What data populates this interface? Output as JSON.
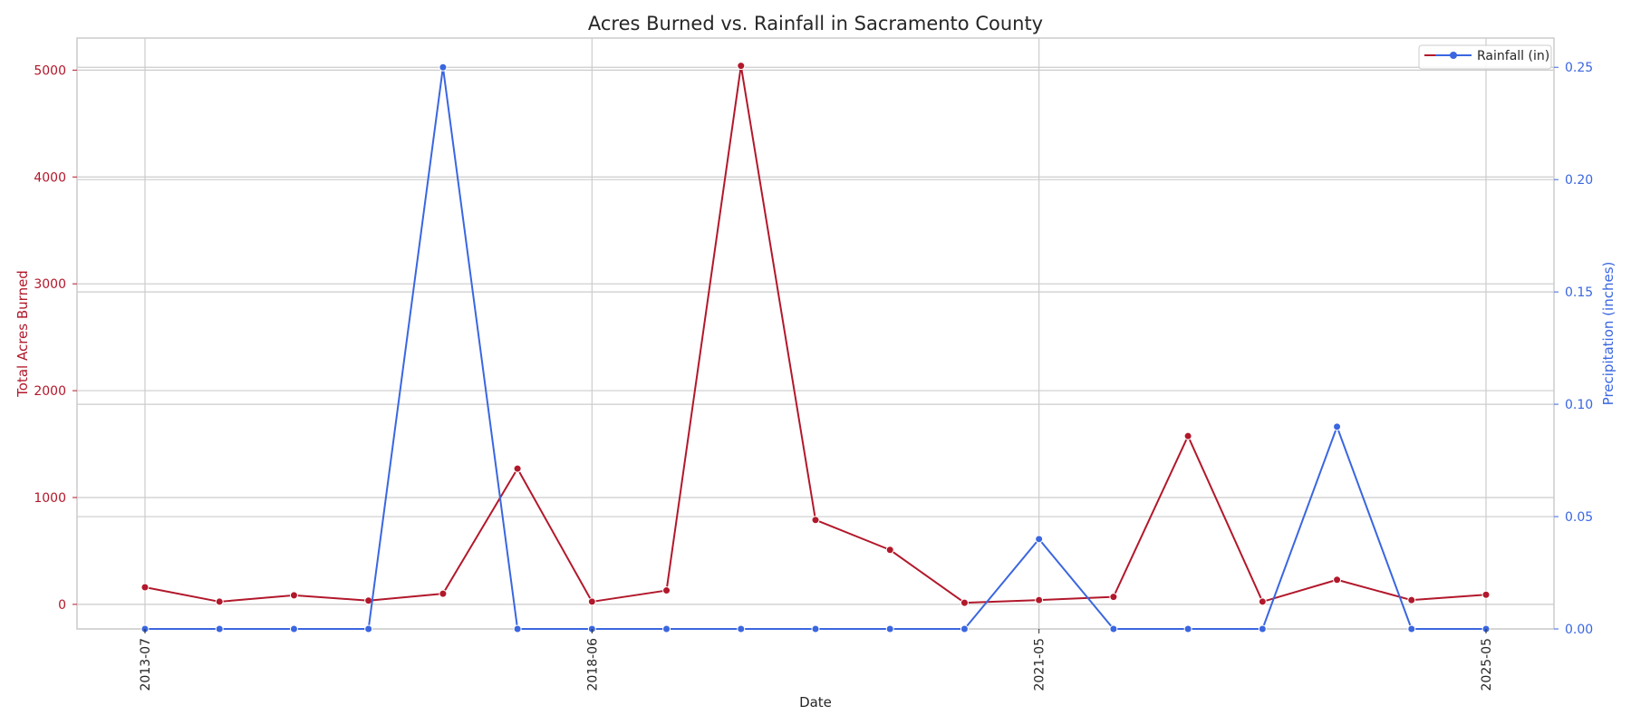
{
  "chart_data": {
    "type": "line",
    "title": "Acres Burned vs. Rainfall in Sacramento County",
    "xlabel": "Date",
    "ylabel_left": "Total Acres Burned",
    "ylabel_right": "Precipitation (inches)",
    "x_tick_labels": [
      "2013-07",
      "2018-06",
      "2021-05",
      "2025-05"
    ],
    "x": [
      0,
      1,
      2,
      3,
      4,
      5,
      6,
      7,
      8,
      9,
      10,
      11,
      12,
      13,
      14,
      15,
      16,
      17,
      18
    ],
    "x_tick_positions": [
      0,
      6,
      12,
      18
    ],
    "ylim_left": [
      -230,
      5300
    ],
    "ylim_right": [
      0,
      0.263
    ],
    "yticks_left": [
      0,
      1000,
      2000,
      3000,
      4000,
      5000
    ],
    "yticks_right": [
      0.0,
      0.05,
      0.1,
      0.15,
      0.2,
      0.25
    ],
    "grid": true,
    "legend_position": "top-right",
    "series": [
      {
        "axis": "left",
        "color": "#b2182b",
        "values": [
          160,
          25,
          85,
          35,
          100,
          1270,
          25,
          130,
          5040,
          790,
          510,
          15,
          40,
          70,
          1575,
          25,
          230,
          40,
          90
        ]
      },
      {
        "name": "Rainfall (in)",
        "axis": "right",
        "color": "#3a66e0",
        "values": [
          0,
          0,
          0,
          0,
          0.25,
          0,
          0,
          0,
          0,
          0,
          0,
          0,
          0.04,
          0,
          0,
          0,
          0.09,
          0,
          0
        ]
      }
    ]
  }
}
